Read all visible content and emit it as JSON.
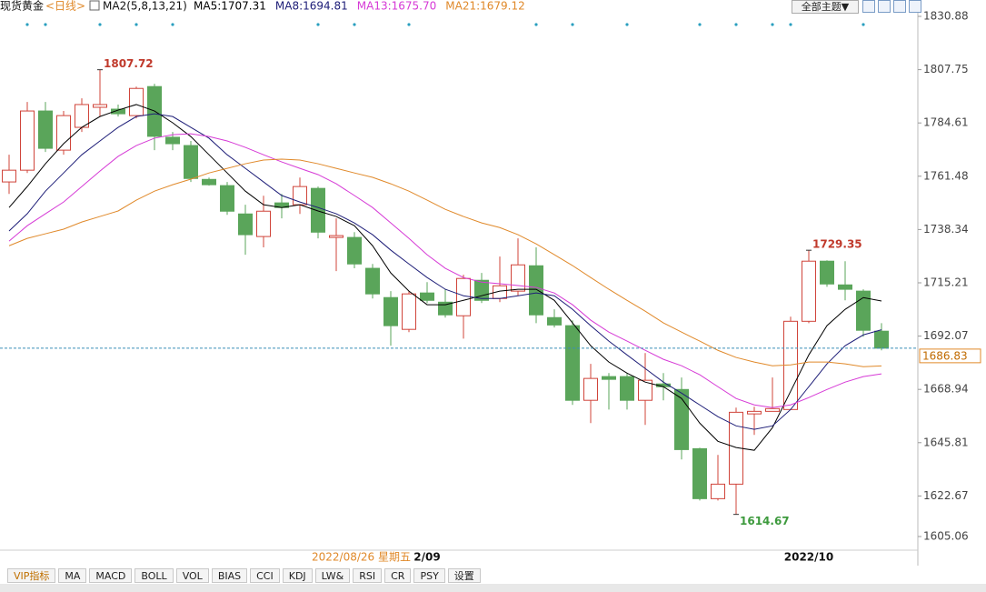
{
  "chart_data": {
    "type": "candlestick",
    "title": "现货黄金",
    "period": "<日线>",
    "indicator": "MA2(5,8,13,21)",
    "date_readout": "2022/08/26 星期五",
    "categories": [
      null,
      null,
      null,
      null,
      null,
      null,
      null,
      null,
      null,
      null,
      null,
      null,
      null,
      null,
      null,
      null,
      null,
      null,
      null,
      null,
      null,
      null,
      null,
      "2/09",
      null,
      null,
      null,
      null,
      null,
      null,
      null,
      null,
      null,
      null,
      null,
      null,
      null,
      null,
      null,
      null,
      null,
      null,
      null,
      null,
      "2022/10",
      null,
      null,
      null,
      null
    ],
    "open": [
      1759.0,
      1764.1,
      1789.8,
      1772.8,
      1782.7,
      1791.4,
      1790.6,
      1787.8,
      1800.4,
      1778.4,
      1774.8,
      1760.1,
      1757.4,
      1745.1,
      1735.3,
      1749.9,
      1749.1,
      1756.2,
      1734.9,
      1734.9,
      1721.5,
      1708.8,
      1695.0,
      1710.8,
      1706.8,
      1700.9,
      1716.3,
      1708.4,
      1711.6,
      1722.6,
      1700.1,
      1696.6,
      1664.2,
      1674.5,
      1674.5,
      1664.2,
      1671.3,
      1668.9,
      1643.2,
      1621.5,
      1627.8,
      1658.3,
      1659.4,
      1660.2,
      1698.5,
      1724.6,
      1714.3,
      1711.6,
      1694.2
    ],
    "high": [
      1770.8,
      1793.7,
      1793.7,
      1789.8,
      1795.3,
      1807.72,
      1792.6,
      1800.4,
      1801.6,
      1780.7,
      1776.8,
      1760.9,
      1759.0,
      1749.1,
      1753.0,
      1753.8,
      1760.9,
      1757.0,
      1743.2,
      1737.2,
      1723.4,
      1711.6,
      1711.6,
      1715.5,
      1712.4,
      1718.7,
      1719.5,
      1726.6,
      1734.5,
      1730.6,
      1703.7,
      1698.9,
      1680.0,
      1676.0,
      1676.0,
      1684.7,
      1676.0,
      1674.1,
      1643.6,
      1640.5,
      1661.0,
      1661.4,
      1674.1,
      1700.5,
      1729.35,
      1725.0,
      1724.6,
      1712.4,
      1697.7
    ],
    "low": [
      1753.8,
      1762.9,
      1772.0,
      1770.8,
      1780.7,
      1787.4,
      1787.4,
      1786.6,
      1772.8,
      1772.8,
      1759.0,
      1757.4,
      1744.7,
      1727.4,
      1730.6,
      1743.2,
      1745.1,
      1734.5,
      1720.3,
      1721.5,
      1708.4,
      1687.9,
      1693.8,
      1706.4,
      1700.1,
      1691.0,
      1706.4,
      1706.8,
      1709.6,
      1697.7,
      1695.8,
      1662.2,
      1654.3,
      1660.2,
      1660.2,
      1653.5,
      1664.2,
      1638.5,
      1620.7,
      1620.7,
      1614.67,
      1649.2,
      1659.4,
      1660.2,
      1697.7,
      1713.5,
      1707.6,
      1691.8,
      1685.9
    ],
    "close": [
      1764.1,
      1789.8,
      1773.6,
      1787.8,
      1792.6,
      1792.6,
      1788.6,
      1799.6,
      1778.8,
      1775.6,
      1760.5,
      1757.8,
      1746.3,
      1736.1,
      1746.3,
      1747.9,
      1757.0,
      1737.2,
      1735.7,
      1723.4,
      1710.4,
      1696.6,
      1710.4,
      1707.6,
      1701.3,
      1717.1,
      1707.6,
      1713.9,
      1723.0,
      1701.3,
      1696.9,
      1664.2,
      1673.7,
      1673.3,
      1664.2,
      1672.9,
      1670.1,
      1642.8,
      1621.5,
      1627.8,
      1659.0,
      1659.4,
      1660.6,
      1698.5,
      1724.6,
      1714.7,
      1712.4,
      1694.6,
      1686.83
    ],
    "up_color": "#d0443a",
    "down_color": "#5aa55a",
    "annotations": [
      {
        "index": 5,
        "field": "high",
        "color": "#c0392b"
      },
      {
        "index": 44,
        "field": "high",
        "color": "#c0392b"
      },
      {
        "index": 40,
        "field": "low",
        "color": "#3d9a3d"
      }
    ],
    "series": [
      {
        "name": "MA5:1707.31",
        "color": "#000000",
        "values": [
          1747.9,
          1757.0,
          1766.9,
          1775.6,
          1782.7,
          1787.4,
          1790.2,
          1792.6,
          1789.8,
          1784.7,
          1778.7,
          1770.8,
          1762.9,
          1755.0,
          1749.1,
          1747.9,
          1749.1,
          1746.4,
          1744.0,
          1740.0,
          1731.3,
          1719.5,
          1711.6,
          1705.7,
          1705.7,
          1707.6,
          1709.6,
          1711.6,
          1712.4,
          1712.4,
          1707.6,
          1697.8,
          1687.9,
          1680.8,
          1676.0,
          1672.1,
          1670.1,
          1665.0,
          1654.3,
          1646.4,
          1643.7,
          1642.5,
          1652.3,
          1668.1,
          1683.9,
          1696.6,
          1703.7,
          1708.8,
          1707.31
        ]
      },
      {
        "name": "MA8:1694.81",
        "color": "#1e1e78",
        "values": [
          1737.7,
          1745.2,
          1755.0,
          1762.9,
          1770.8,
          1776.8,
          1782.7,
          1787.4,
          1788.6,
          1787.4,
          1782.7,
          1778.0,
          1770.8,
          1764.9,
          1759.0,
          1753.1,
          1750.3,
          1747.9,
          1745.2,
          1741.2,
          1736.1,
          1729.4,
          1723.4,
          1717.5,
          1712.4,
          1709.6,
          1708.4,
          1708.4,
          1709.6,
          1710.8,
          1709.6,
          1703.7,
          1696.6,
          1689.9,
          1683.9,
          1678.0,
          1672.1,
          1667.3,
          1662.2,
          1657.1,
          1653.1,
          1651.6,
          1653.1,
          1660.2,
          1670.1,
          1680.0,
          1687.9,
          1692.6,
          1694.81
        ]
      },
      {
        "name": "MA13:1675.70",
        "color": "#d63ad6",
        "values": [
          1733.3,
          1740.0,
          1745.2,
          1750.3,
          1757.0,
          1763.7,
          1770.1,
          1774.8,
          1778.0,
          1779.5,
          1779.9,
          1778.7,
          1776.8,
          1774.0,
          1770.8,
          1767.7,
          1764.9,
          1762.2,
          1758.2,
          1753.1,
          1747.9,
          1741.2,
          1734.5,
          1727.4,
          1721.5,
          1717.5,
          1715.5,
          1714.8,
          1714.0,
          1713.2,
          1710.8,
          1705.7,
          1699.0,
          1693.8,
          1689.9,
          1685.9,
          1682.0,
          1679.2,
          1675.3,
          1670.1,
          1665.0,
          1662.2,
          1661.0,
          1662.2,
          1665.4,
          1668.9,
          1672.1,
          1674.5,
          1675.7
        ]
      },
      {
        "name": "MA21:1679.12",
        "color": "#e0892a",
        "values": [
          1731.3,
          1734.5,
          1736.5,
          1738.5,
          1741.6,
          1744.0,
          1746.4,
          1751.1,
          1755.0,
          1757.8,
          1760.2,
          1762.9,
          1764.9,
          1766.9,
          1768.5,
          1768.9,
          1768.5,
          1766.9,
          1764.9,
          1762.9,
          1761.0,
          1758.2,
          1755.0,
          1751.1,
          1747.1,
          1744.0,
          1741.2,
          1739.2,
          1736.1,
          1732.1,
          1727.4,
          1722.7,
          1717.5,
          1712.4,
          1707.6,
          1702.9,
          1697.8,
          1693.8,
          1689.9,
          1685.9,
          1682.8,
          1680.8,
          1679.2,
          1679.6,
          1680.8,
          1680.8,
          1680.0,
          1678.8,
          1679.12
        ]
      }
    ],
    "last_price": 1686.83,
    "ylim": [
      1605.06,
      1830.88
    ],
    "yticks": [
      1830.88,
      1807.75,
      1784.61,
      1761.48,
      1738.34,
      1715.21,
      1692.07,
      1668.94,
      1645.81,
      1622.67,
      1605.06
    ]
  },
  "ui": {
    "theme_button": "全部主题▼",
    "tabs": [
      "VIP指标",
      "MA",
      "MACD",
      "BOLL",
      "VOL",
      "BIAS",
      "CCI",
      "KDJ",
      "LW&",
      "RSI",
      "CR",
      "PSY",
      "设置"
    ]
  }
}
